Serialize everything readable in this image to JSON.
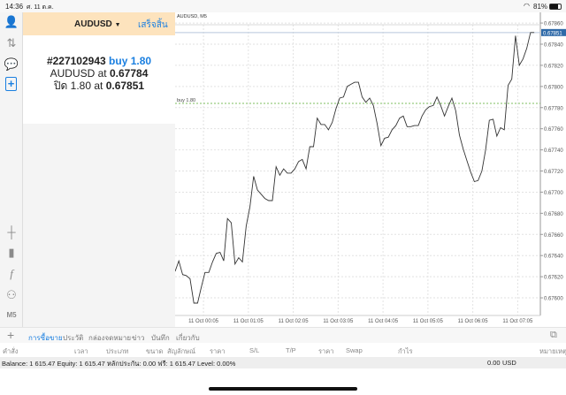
{
  "status": {
    "time": "14:36",
    "date": "ศ. 11 ต.ค.",
    "battery": "81%"
  },
  "panel": {
    "symbol": "AUDUSD",
    "done_label": "เสร็จสิ้น",
    "order_id": "#227102943",
    "order_side": "buy 1.80",
    "line2_prefix": "AUDUSD at",
    "line2_price": "0.67784",
    "line3_prefix": "ปิด 1.80 at",
    "line3_price": "0.67851"
  },
  "sidebar_bottom": {
    "timeframe": "M5"
  },
  "tabs": [
    "การซื้อขาย",
    "ประวัติ",
    "กล่องจดหมาย",
    "ข่าว",
    "บันทึก",
    "เกี่ยวกับ"
  ],
  "columns": [
    "คำสั่ง",
    "เวลา",
    "ประเภท",
    "ขนาด",
    "สัญลักษณ์",
    "ราคา",
    "S/L",
    "T/P",
    "ราคา",
    "Swap",
    "กำไร",
    "หมายเหตุ"
  ],
  "balance": {
    "text": "Balance: 1 615.47 Equity: 1 615.47 หลักประกัน: 0.00 ฟรี: 1 615.47 Level: 0.00%",
    "profit": "0.00",
    "currency": "USD"
  },
  "colors": {
    "accent": "#1a7fe0",
    "header_bg": "#fde3bd",
    "buy_line": "#7fbf5f",
    "price_tag": "#2f6aa8"
  },
  "chart_data": {
    "type": "line",
    "title": "AUDUSD, M5",
    "ylim": [
      0.6758,
      0.6787
    ],
    "yticks": [
      "0.67600",
      "0.67620",
      "0.67640",
      "0.67660",
      "0.67680",
      "0.67700",
      "0.67720",
      "0.67740",
      "0.67760",
      "0.67780",
      "0.67800",
      "0.67820",
      "0.67840",
      "0.67860"
    ],
    "xtick_labels": [
      "11 Oct 00:05",
      "11 Oct 01:05",
      "11 Oct 02:05",
      "11 Oct 03:05",
      "11 Oct 04:05",
      "11 Oct 05:05",
      "11 Oct 06:05",
      "11 Oct 07:05"
    ],
    "xtick_bar_index": [
      9,
      21,
      33,
      45,
      57,
      69,
      81,
      93
    ],
    "buy_line": {
      "label": "buy 1.80",
      "price": 0.67784
    },
    "current_price": {
      "label": "0.67851",
      "price": 0.67851
    },
    "close": [
      0.67625,
      0.67635,
      0.67622,
      0.67621,
      0.67618,
      0.67595,
      0.67595,
      0.6761,
      0.67624,
      0.67624,
      0.67634,
      0.67642,
      0.67643,
      0.67635,
      0.67675,
      0.67671,
      0.67632,
      0.67638,
      0.67634,
      0.67668,
      0.67686,
      0.67715,
      0.67702,
      0.67698,
      0.67694,
      0.67692,
      0.67692,
      0.67724,
      0.67716,
      0.67722,
      0.67718,
      0.67718,
      0.67722,
      0.67729,
      0.67731,
      0.67722,
      0.67743,
      0.67743,
      0.6777,
      0.67764,
      0.67764,
      0.67759,
      0.67766,
      0.67779,
      0.67789,
      0.6779,
      0.678,
      0.67802,
      0.67804,
      0.67804,
      0.6779,
      0.67785,
      0.67789,
      0.67782,
      0.67765,
      0.67744,
      0.67751,
      0.67752,
      0.67759,
      0.67763,
      0.6777,
      0.67772,
      0.67762,
      0.67762,
      0.67763,
      0.67763,
      0.67772,
      0.67778,
      0.67781,
      0.67782,
      0.6779,
      0.67782,
      0.67772,
      0.67781,
      0.67789,
      0.67777,
      0.67754,
      0.67741,
      0.6773,
      0.67719,
      0.6771,
      0.67711,
      0.6772,
      0.6774,
      0.67768,
      0.67769,
      0.67753,
      0.67761,
      0.67759,
      0.67801,
      0.67807,
      0.67848,
      0.6782,
      0.67826,
      0.67836,
      0.67851,
      0.67851
    ]
  }
}
